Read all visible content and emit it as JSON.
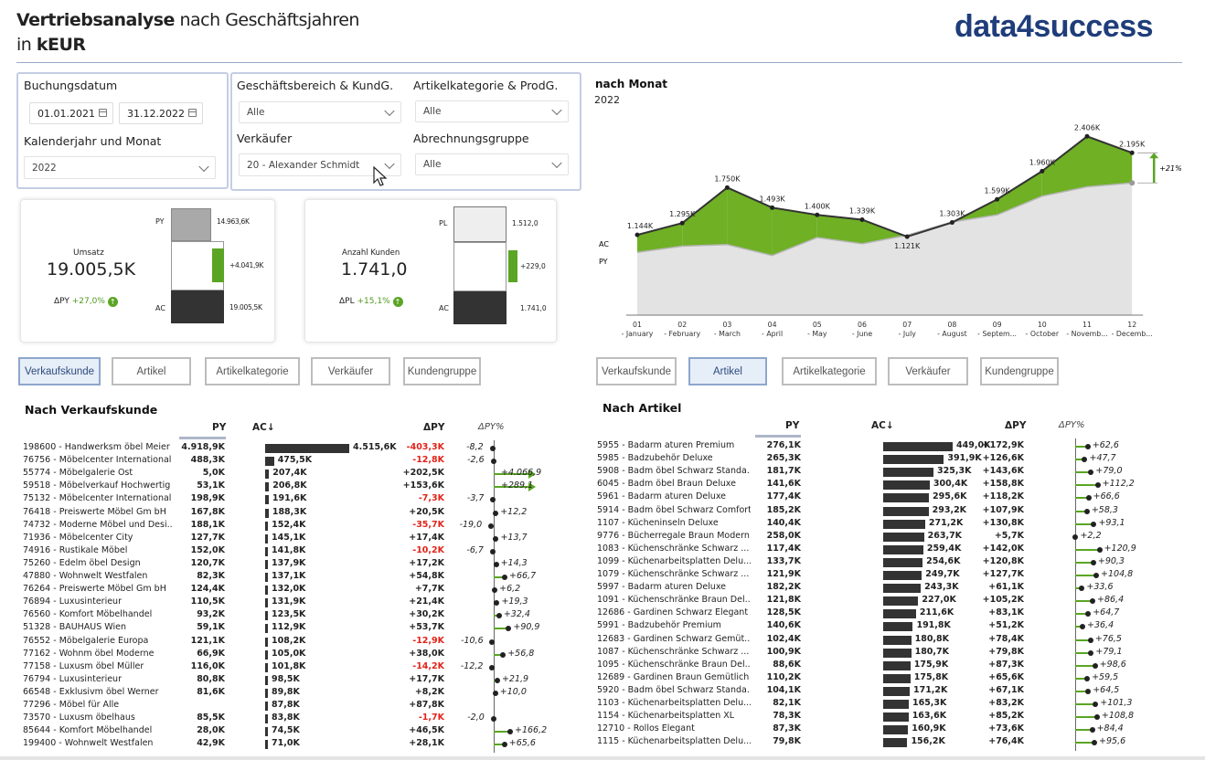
{
  "header": {
    "title_bold": "Vertriebsanalyse",
    "title_rest": " nach Geschäftsjahren",
    "subtitle_pre": "in ",
    "subtitle_bold": "kEUR",
    "logo": "data4success"
  },
  "filters": {
    "buchungsdatum_label": "Buchungsdatum",
    "date_from": "01.01.2021",
    "date_to": "31.12.2022",
    "kalender_label": "Kalenderjahr und Monat",
    "kalender_value": "2022",
    "gb_label": "Geschäftsbereich & KundG.",
    "gb_value": "Alle",
    "ak_label": "Artikelkategorie & ProdG.",
    "ak_value": "Alle",
    "vk_label": "Verkäufer",
    "vk_value": "20 - Alexander Schmidt",
    "ag_label": "Abrechnungsgruppe",
    "ag_value": "Alle"
  },
  "kpi1": {
    "title": "Umsatz",
    "value": "19.005,5K",
    "delta_label": "ΔPY",
    "delta": "+27,0%",
    "py_label": "PY",
    "ac_label": "AC",
    "py_val": "14.963,6K",
    "diff_val": "+4.041,9K",
    "ac_val": "19.005,5K"
  },
  "kpi2": {
    "title": "Anzahl Kunden",
    "value": "1.741,0",
    "delta_label": "ΔPL",
    "delta": "+15,1%",
    "py_label": "PL",
    "ac_label": "AC",
    "py_val": "1.512,0",
    "diff_val": "+229,0",
    "ac_val": "1.741,0"
  },
  "chart_data": {
    "type": "area",
    "title": "nach Monat",
    "subtitle": "2022",
    "x": [
      "01\n- January",
      "02\n- February",
      "03\n- March",
      "04\n- April",
      "05\n- May",
      "06\n- June",
      "07\n- July",
      "08\n- August",
      "09\n- Septem...",
      "10\n- October",
      "11\n- Novemb...",
      "12\n- Decemb..."
    ],
    "series": [
      {
        "name": "AC",
        "values": [
          1144,
          1295,
          1750,
          1493,
          1400,
          1339,
          1121,
          1303,
          1599,
          1960,
          2406,
          2195
        ],
        "labels": [
          "1.144K",
          "1.295K",
          "1.750K",
          "1.493K",
          "1.400K",
          "1.339K",
          "1.121K",
          "1.303K",
          "1.599K",
          "1.960K",
          "2.406K",
          "2.195K"
        ]
      },
      {
        "name": "PY",
        "values": [
          920,
          1000,
          1020,
          880,
          1110,
          1030,
          1140,
          1310,
          1400,
          1640,
          1760,
          1810
        ]
      }
    ],
    "annotation": "+21%",
    "colors": {
      "fill_pos": "#6fb024",
      "fill_neg": "#d6d6d6",
      "py_area": "#e3e3e3",
      "ac_line": "#333333"
    }
  },
  "buttons_left": [
    {
      "label": "Verkaufskunde",
      "selected": true
    },
    {
      "label": "Artikel",
      "selected": false
    },
    {
      "label": "Artikelkategorie",
      "selected": false
    },
    {
      "label": "Verkäufer",
      "selected": false
    },
    {
      "label": "Kundengruppe",
      "selected": false
    }
  ],
  "buttons_right": [
    {
      "label": "Verkaufskunde",
      "selected": false
    },
    {
      "label": "Artikel",
      "selected": true
    },
    {
      "label": "Artikelkategorie",
      "selected": false
    },
    {
      "label": "Verkäufer",
      "selected": false
    },
    {
      "label": "Kundengruppe",
      "selected": false
    }
  ],
  "table_left": {
    "title": "Nach Verkaufskunde",
    "col_py": "PY",
    "col_ac": "AC↓",
    "col_dpy": "ΔPY",
    "col_dpypct": "ΔPY%",
    "rows": [
      {
        "name": "198600 - Handwerksm öbel Meier",
        "py": "4.918,9K",
        "ac": "4.515,6K",
        "acv": 4515.6,
        "dpy": "-403,3K",
        "pct": -8.2,
        "pct_label": "-8,2"
      },
      {
        "name": "76756 - Möbelcenter International",
        "py": "488,3K",
        "ac": "475,5K",
        "acv": 475.5,
        "dpy": "-12,8K",
        "pct": -2.6,
        "pct_label": "-2,6"
      },
      {
        "name": "55774 - Möbelgalerie Ost",
        "py": "5,0K",
        "ac": "207,4K",
        "acv": 207.4,
        "dpy": "+202,5K",
        "pct": 4066.9,
        "pct_label": "+4.066,9"
      },
      {
        "name": "59518 - Möbelverkauf Hochwertig",
        "py": "53,1K",
        "ac": "206,8K",
        "acv": 206.8,
        "dpy": "+153,6K",
        "pct": 289.1,
        "pct_label": "+289,1"
      },
      {
        "name": "75132 - Möbelcenter International",
        "py": "198,9K",
        "ac": "191,6K",
        "acv": 191.6,
        "dpy": "-7,3K",
        "pct": -3.7,
        "pct_label": "-3,7"
      },
      {
        "name": "76418 - Preiswerte Möbel Gm bH",
        "py": "167,8K",
        "ac": "188,3K",
        "acv": 188.3,
        "dpy": "+20,5K",
        "pct": 12.2,
        "pct_label": "+12,2"
      },
      {
        "name": "74732 - Moderne Möbel und Desi...",
        "py": "188,1K",
        "ac": "152,4K",
        "acv": 152.4,
        "dpy": "-35,7K",
        "pct": -19.0,
        "pct_label": "-19,0"
      },
      {
        "name": "71936 - Möbelcenter City",
        "py": "127,7K",
        "ac": "145,1K",
        "acv": 145.1,
        "dpy": "+17,4K",
        "pct": 13.7,
        "pct_label": "+13,7"
      },
      {
        "name": "74916 - Rustikale Möbel",
        "py": "152,0K",
        "ac": "141,8K",
        "acv": 141.8,
        "dpy": "-10,2K",
        "pct": -6.7,
        "pct_label": "-6,7"
      },
      {
        "name": "75260 - Edelm öbel Design",
        "py": "120,7K",
        "ac": "137,9K",
        "acv": 137.9,
        "dpy": "+17,2K",
        "pct": 14.3,
        "pct_label": "+14,3"
      },
      {
        "name": "47880 - Wohnwelt Westfalen",
        "py": "82,3K",
        "ac": "137,1K",
        "acv": 137.1,
        "dpy": "+54,8K",
        "pct": 66.7,
        "pct_label": "+66,7"
      },
      {
        "name": "76264 - Preiswerte Möbel Gm bH",
        "py": "124,4K",
        "ac": "132,0K",
        "acv": 132.0,
        "dpy": "+7,7K",
        "pct": 6.2,
        "pct_label": "+6,2"
      },
      {
        "name": "76894 - Luxusinterieur",
        "py": "110,5K",
        "ac": "131,9K",
        "acv": 131.9,
        "dpy": "+21,4K",
        "pct": 19.3,
        "pct_label": "+19,3"
      },
      {
        "name": "76560 - Komfort Möbelhandel",
        "py": "93,2K",
        "ac": "123,5K",
        "acv": 123.5,
        "dpy": "+30,2K",
        "pct": 32.4,
        "pct_label": "+32,4"
      },
      {
        "name": "51328 - BAUHAUS Wien",
        "py": "59,1K",
        "ac": "112,9K",
        "acv": 112.9,
        "dpy": "+53,7K",
        "pct": 90.9,
        "pct_label": "+90,9"
      },
      {
        "name": "76552 - Möbelgalerie Europa",
        "py": "121,1K",
        "ac": "108,2K",
        "acv": 108.2,
        "dpy": "-12,9K",
        "pct": -10.6,
        "pct_label": "-10,6"
      },
      {
        "name": "77162 - Wohnm öbel Moderne",
        "py": "66,9K",
        "ac": "105,0K",
        "acv": 105.0,
        "dpy": "+38,0K",
        "pct": 56.8,
        "pct_label": "+56,8"
      },
      {
        "name": "77158 - Luxusm öbel Müller",
        "py": "116,0K",
        "ac": "101,8K",
        "acv": 101.8,
        "dpy": "-14,2K",
        "pct": -12.2,
        "pct_label": "-12,2"
      },
      {
        "name": "76794 - Luxusinterieur",
        "py": "80,8K",
        "ac": "98,5K",
        "acv": 98.5,
        "dpy": "+17,7K",
        "pct": 21.9,
        "pct_label": "+21,9"
      },
      {
        "name": "66548 - Exklusivm öbel Werner",
        "py": "81,6K",
        "ac": "89,8K",
        "acv": 89.8,
        "dpy": "+8,2K",
        "pct": 10.0,
        "pct_label": "+10,0"
      },
      {
        "name": "77296 - Möbel für Alle",
        "py": "",
        "ac": "87,8K",
        "acv": 87.8,
        "dpy": "+87,8K",
        "pct": null,
        "pct_label": ""
      },
      {
        "name": "73570 - Luxusm öbelhaus",
        "py": "85,5K",
        "ac": "83,8K",
        "acv": 83.8,
        "dpy": "-1,7K",
        "pct": -2.0,
        "pct_label": "-2,0"
      },
      {
        "name": "85644 - Komfort Möbelhandel",
        "py": "28,0K",
        "ac": "74,5K",
        "acv": 74.5,
        "dpy": "+46,5K",
        "pct": 166.2,
        "pct_label": "+166,2"
      },
      {
        "name": "199400 - Wohnwelt Westfalen",
        "py": "42,9K",
        "ac": "71,0K",
        "acv": 71.0,
        "dpy": "+28,1K",
        "pct": 65.6,
        "pct_label": "+65,6"
      }
    ]
  },
  "table_right": {
    "title": "Nach Artikel",
    "col_py": "PY",
    "col_ac": "AC↓",
    "col_dpy": "ΔPY",
    "col_dpypct": "ΔPY%",
    "rows": [
      {
        "name": "5955 - Badarm aturen Premium",
        "py": "276,1K",
        "ac": "449,0K",
        "acv": 449.0,
        "dpy": "+172,9K",
        "pct": 62.6,
        "pct_label": "+62,6"
      },
      {
        "name": "5985 - Badzubehör Deluxe",
        "py": "265,3K",
        "ac": "391,9K",
        "acv": 391.9,
        "dpy": "+126,6K",
        "pct": 47.7,
        "pct_label": "+47,7"
      },
      {
        "name": "5908 - Badm öbel Schwarz Standa...",
        "py": "181,7K",
        "ac": "325,3K",
        "acv": 325.3,
        "dpy": "+143,6K",
        "pct": 79.0,
        "pct_label": "+79,0"
      },
      {
        "name": "6045 - Badm öbel Braun Deluxe",
        "py": "141,6K",
        "ac": "300,4K",
        "acv": 300.4,
        "dpy": "+158,8K",
        "pct": 112.2,
        "pct_label": "+112,2"
      },
      {
        "name": "5961 - Badarm aturen Deluxe",
        "py": "177,4K",
        "ac": "295,6K",
        "acv": 295.6,
        "dpy": "+118,2K",
        "pct": 66.6,
        "pct_label": "+66,6"
      },
      {
        "name": "5914 - Badm öbel Schwarz Comfort",
        "py": "185,2K",
        "ac": "293,2K",
        "acv": 293.2,
        "dpy": "+107,9K",
        "pct": 58.3,
        "pct_label": "+58,3"
      },
      {
        "name": "1107 - Kücheninseln Deluxe",
        "py": "140,4K",
        "ac": "271,2K",
        "acv": 271.2,
        "dpy": "+130,8K",
        "pct": 93.1,
        "pct_label": "+93,1"
      },
      {
        "name": "9776 - Bücherregale Braun Modern",
        "py": "258,0K",
        "ac": "263,7K",
        "acv": 263.7,
        "dpy": "+5,7K",
        "pct": 2.2,
        "pct_label": "+2,2"
      },
      {
        "name": "1083 - Küchenschränke Schwarz ...",
        "py": "117,4K",
        "ac": "259,4K",
        "acv": 259.4,
        "dpy": "+142,0K",
        "pct": 120.9,
        "pct_label": "+120,9"
      },
      {
        "name": "1099 - Küchenarbeitsplatten Delu...",
        "py": "133,7K",
        "ac": "254,6K",
        "acv": 254.6,
        "dpy": "+120,8K",
        "pct": 90.3,
        "pct_label": "+90,3"
      },
      {
        "name": "1079 - Küchenschränke Schwarz ...",
        "py": "121,9K",
        "ac": "249,7K",
        "acv": 249.7,
        "dpy": "+127,7K",
        "pct": 104.8,
        "pct_label": "+104,8"
      },
      {
        "name": "5997 - Badarm aturen Deluxe",
        "py": "182,2K",
        "ac": "243,3K",
        "acv": 243.3,
        "dpy": "+61,1K",
        "pct": 33.6,
        "pct_label": "+33,6"
      },
      {
        "name": "1091 - Küchenschränke Braun Del...",
        "py": "121,8K",
        "ac": "227,0K",
        "acv": 227.0,
        "dpy": "+105,2K",
        "pct": 86.4,
        "pct_label": "+86,4"
      },
      {
        "name": "12686 - Gardinen Schwarz Elegant",
        "py": "128,5K",
        "ac": "211,6K",
        "acv": 211.6,
        "dpy": "+83,1K",
        "pct": 64.7,
        "pct_label": "+64,7"
      },
      {
        "name": "5991 - Badzubehör Premium",
        "py": "140,6K",
        "ac": "191,8K",
        "acv": 191.8,
        "dpy": "+51,2K",
        "pct": 36.4,
        "pct_label": "+36,4"
      },
      {
        "name": "12683 - Gardinen Schwarz Gemüt...",
        "py": "102,4K",
        "ac": "180,8K",
        "acv": 180.8,
        "dpy": "+78,4K",
        "pct": 76.5,
        "pct_label": "+76,5"
      },
      {
        "name": "1087 - Küchenschränke Schwarz ...",
        "py": "100,9K",
        "ac": "180,7K",
        "acv": 180.7,
        "dpy": "+79,8K",
        "pct": 79.1,
        "pct_label": "+79,1"
      },
      {
        "name": "1095 - Küchenschränke Braun Del...",
        "py": "88,6K",
        "ac": "175,9K",
        "acv": 175.9,
        "dpy": "+87,3K",
        "pct": 98.6,
        "pct_label": "+98,6"
      },
      {
        "name": "12689 - Gardinen Braun Gemütlich",
        "py": "110,2K",
        "ac": "175,8K",
        "acv": 175.8,
        "dpy": "+65,6K",
        "pct": 59.5,
        "pct_label": "+59,5"
      },
      {
        "name": "5920 - Badm öbel Schwarz Standa...",
        "py": "104,1K",
        "ac": "171,2K",
        "acv": 171.2,
        "dpy": "+67,1K",
        "pct": 64.5,
        "pct_label": "+64,5"
      },
      {
        "name": "1103 - Küchenarbeitsplatten Delu...",
        "py": "82,1K",
        "ac": "165,3K",
        "acv": 165.3,
        "dpy": "+83,2K",
        "pct": 101.3,
        "pct_label": "+101,3"
      },
      {
        "name": "1154 - Küchenarbeitsplatten XL",
        "py": "78,3K",
        "ac": "163,6K",
        "acv": 163.6,
        "dpy": "+85,2K",
        "pct": 108.8,
        "pct_label": "+108,8"
      },
      {
        "name": "12710 - Rollos Elegant",
        "py": "87,3K",
        "ac": "160,9K",
        "acv": 160.9,
        "dpy": "+73,6K",
        "pct": 84.4,
        "pct_label": "+84,4"
      },
      {
        "name": "1115 - Küchenarbeitsplatten Delu...",
        "py": "79,8K",
        "ac": "156,2K",
        "acv": 156.2,
        "dpy": "+76,4K",
        "pct": 95.6,
        "pct_label": "+95,6"
      }
    ]
  }
}
